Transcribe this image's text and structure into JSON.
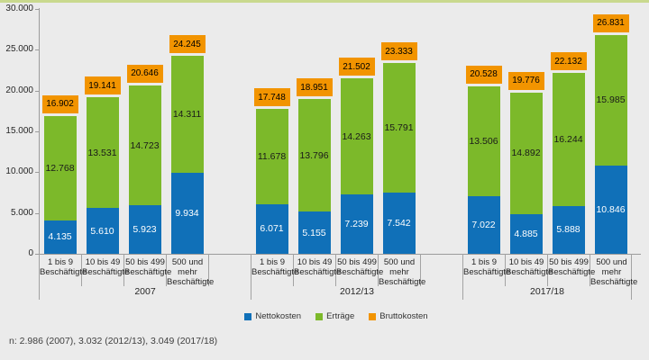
{
  "page": {
    "background_color": "#EBEBEB",
    "top_accent_color": "#C9D98E"
  },
  "footnote": "n: 2.986 (2007), 3.032 (2012/13), 3.049 (2017/18)",
  "chart_data": {
    "type": "bar",
    "stacked": true,
    "orientation": "vertical",
    "grid": false,
    "legend_position": "bottom",
    "ylim": [
      0,
      30000
    ],
    "ytick_step": 5000,
    "ytick_labels": [
      "0",
      "5.000",
      "10.000",
      "15.000",
      "20.000",
      "25.000",
      "30.000"
    ],
    "number_format": "german-thousands-dot",
    "series": [
      {
        "name": "Nettokosten",
        "color": "#1070B8",
        "role": "segment"
      },
      {
        "name": "Erträge",
        "color": "#7CB92A",
        "role": "segment"
      },
      {
        "name": "Bruttokosten",
        "color": "#F29400",
        "role": "total-label-box"
      }
    ],
    "category_label_lines": [
      [
        "1 bis 9",
        "Beschäftigte"
      ],
      [
        "10 bis 49",
        "Beschäftigte"
      ],
      [
        "50 bis 499",
        "Beschäftigte"
      ],
      [
        "500 und",
        "mehr",
        "Beschäftigte"
      ]
    ],
    "groups": [
      {
        "label": "2007",
        "bars": [
          {
            "category": "1 bis 9 Beschäftigte",
            "nettokosten": 4135,
            "ertraege": 12768,
            "bruttokosten": 16902
          },
          {
            "category": "10 bis 49 Beschäftigte",
            "nettokosten": 5610,
            "ertraege": 13531,
            "bruttokosten": 19141
          },
          {
            "category": "50 bis 499 Beschäftigte",
            "nettokosten": 5923,
            "ertraege": 14723,
            "bruttokosten": 20646
          },
          {
            "category": "500 und mehr Beschäftigte",
            "nettokosten": 9934,
            "ertraege": 14311,
            "bruttokosten": 24245
          }
        ]
      },
      {
        "label": "2012/13",
        "bars": [
          {
            "category": "1 bis 9 Beschäftigte",
            "nettokosten": 6071,
            "ertraege": 11678,
            "bruttokosten": 17748
          },
          {
            "category": "10 bis 49 Beschäftigte",
            "nettokosten": 5155,
            "ertraege": 13796,
            "bruttokosten": 18951
          },
          {
            "category": "50 bis 499 Beschäftigte",
            "nettokosten": 7239,
            "ertraege": 14263,
            "bruttokosten": 21502
          },
          {
            "category": "500 und mehr Beschäftigte",
            "nettokosten": 7542,
            "ertraege": 15791,
            "bruttokosten": 23333
          }
        ]
      },
      {
        "label": "2017/18",
        "bars": [
          {
            "category": "1 bis 9 Beschäftigte",
            "nettokosten": 7022,
            "ertraege": 13506,
            "bruttokosten": 20528
          },
          {
            "category": "10 bis 49 Beschäftigte",
            "nettokosten": 4885,
            "ertraege": 14892,
            "bruttokosten": 19776
          },
          {
            "category": "50 bis 499 Beschäftigte",
            "nettokosten": 5888,
            "ertraege": 16244,
            "bruttokosten": 22132
          },
          {
            "category": "500 und mehr Beschäftigte",
            "nettokosten": 10846,
            "ertraege": 15985,
            "bruttokosten": 26831
          }
        ]
      }
    ]
  }
}
